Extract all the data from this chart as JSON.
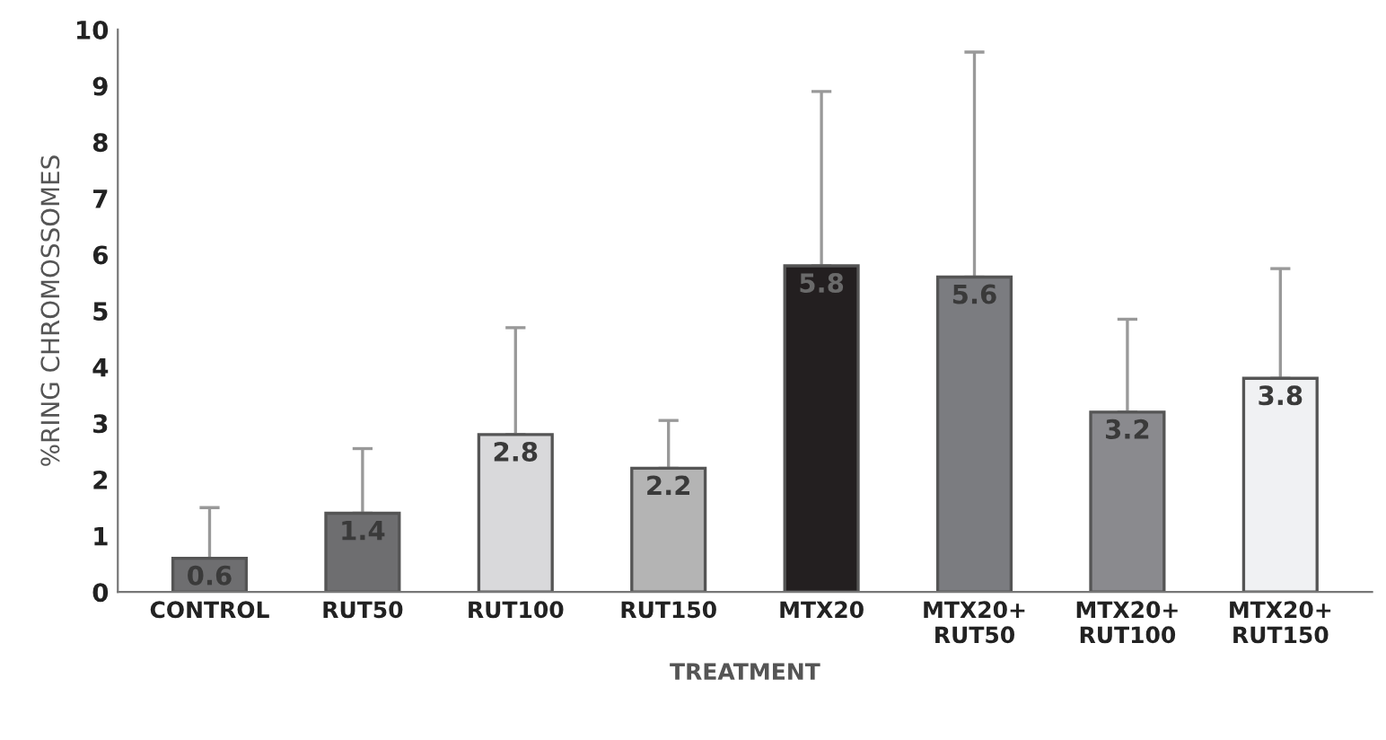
{
  "chart_data": {
    "type": "bar",
    "categories": [
      "CONTROL",
      "RUT50",
      "RUT100",
      "RUT150",
      "MTX20",
      "MTX20+\nRUT50",
      "MTX20+\nRUT100",
      "MTX20+\nRUT150"
    ],
    "values": [
      0.6,
      1.4,
      2.8,
      2.2,
      5.8,
      5.6,
      3.2,
      3.8
    ],
    "errors": [
      [
        0.6,
        1.5
      ],
      [
        1.4,
        2.55
      ],
      [
        2.8,
        4.7
      ],
      [
        2.2,
        3.05
      ],
      [
        5.8,
        8.9
      ],
      [
        5.6,
        9.6
      ],
      [
        3.2,
        4.85
      ],
      [
        3.8,
        5.75
      ]
    ],
    "colors": [
      "#6e6e70",
      "#6e6e70",
      "#d9d9db",
      "#b4b4b4",
      "#231f20",
      "#7b7c80",
      "#8a8a8e",
      "#f0f1f3"
    ],
    "data_labels": true,
    "xlabel": "TREATMENT",
    "ylabel": "%RING CHROMOSSOMES",
    "ylim": [
      0,
      10
    ],
    "yticks": [
      0,
      1,
      2,
      3,
      4,
      5,
      6,
      7,
      8,
      9,
      10
    ],
    "grid": false,
    "legend": false
  }
}
